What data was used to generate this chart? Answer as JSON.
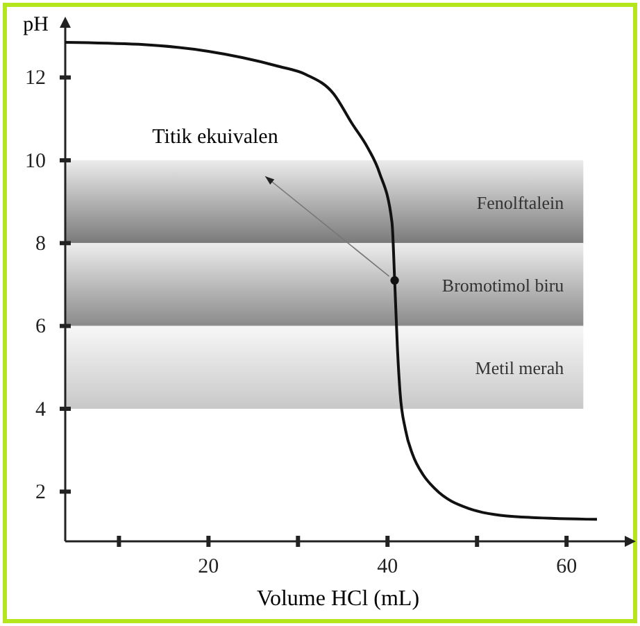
{
  "chart_data": {
    "type": "line",
    "xlabel": "Volume HCl (mL)",
    "ylabel": "pH",
    "xlim": [
      4,
      66.5
    ],
    "ylim": [
      0.8,
      13.2
    ],
    "xticks": [
      {
        "value": 10,
        "label": null
      },
      20,
      {
        "value": 30,
        "label": null
      },
      40,
      {
        "value": 50,
        "label": null
      },
      60
    ],
    "yticks": [
      2,
      4,
      6,
      8,
      10,
      12
    ],
    "series": [
      {
        "color": "#111111",
        "marker": "none",
        "x": [
          4,
          12.2,
          20,
          27.8,
          30.9,
          34,
          36,
          37.8,
          39.1,
          40.5,
          40.8,
          41.1,
          41.4,
          42,
          42.8,
          44,
          45.3,
          49,
          54.1,
          63.4
        ],
        "values": [
          12.85,
          12.8,
          12.63,
          12.27,
          12.07,
          11.6,
          10.9,
          10.3,
          9.7,
          8.5,
          7.1,
          5.5,
          4.4,
          3.5,
          2.9,
          2.4,
          2.07,
          1.6,
          1.4,
          1.33
        ]
      },
      {
        "type": "scatter",
        "color": "#111111",
        "marker": "circle",
        "x": [
          40.8
        ],
        "values": [
          7.1
        ]
      }
    ],
    "bands": [
      {
        "axis": "y",
        "from": 8,
        "to": 10,
        "label": "Fenolftalein",
        "color": "#7a7a7a"
      },
      {
        "axis": "y",
        "from": 6,
        "to": 8,
        "label": "Bromotimol biru",
        "color": "#8a8a8a"
      },
      {
        "axis": "y",
        "from": 4,
        "to": 6,
        "label": "Metil merah",
        "color": "#c8c8c8"
      }
    ],
    "annotations": [
      "Titik ekuivalen"
    ]
  }
}
